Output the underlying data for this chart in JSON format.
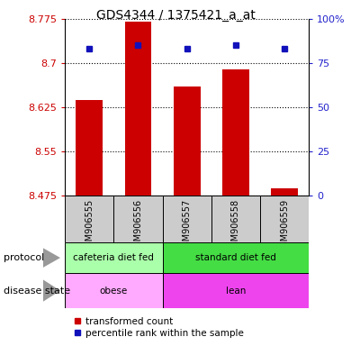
{
  "title": "GDS4344 / 1375421_a_at",
  "samples": [
    "GSM906555",
    "GSM906556",
    "GSM906557",
    "GSM906558",
    "GSM906559"
  ],
  "red_values": [
    8.638,
    8.77,
    8.66,
    8.69,
    8.487
  ],
  "blue_percentiles": [
    83,
    85,
    83,
    85,
    83
  ],
  "ymin": 8.475,
  "ymax": 8.775,
  "yticks": [
    8.475,
    8.55,
    8.625,
    8.7,
    8.775
  ],
  "ytick_labels": [
    "8.475",
    "8.55",
    "8.625",
    "8.7",
    "8.775"
  ],
  "right_yticks": [
    0,
    25,
    50,
    75,
    100
  ],
  "right_ytick_labels": [
    "0",
    "25",
    "50",
    "75",
    "100%"
  ],
  "bar_color": "#cc0000",
  "dot_color": "#1111bb",
  "protocol_groups": [
    {
      "label": "cafeteria diet fed",
      "start": 0,
      "end": 2,
      "color": "#aaffaa"
    },
    {
      "label": "standard diet fed",
      "start": 2,
      "end": 5,
      "color": "#44dd44"
    }
  ],
  "disease_groups": [
    {
      "label": "obese",
      "start": 0,
      "end": 2,
      "color": "#ffaaff"
    },
    {
      "label": "lean",
      "start": 2,
      "end": 5,
      "color": "#ee44ee"
    }
  ],
  "legend_red": "transformed count",
  "legend_blue": "percentile rank within the sample",
  "label_protocol": "protocol",
  "label_disease": "disease state",
  "bar_width": 0.55,
  "tick_label_color_left": "#cc0000",
  "tick_label_color_right": "#2222cc",
  "sample_box_color": "#cccccc",
  "arrow_color": "#999999"
}
